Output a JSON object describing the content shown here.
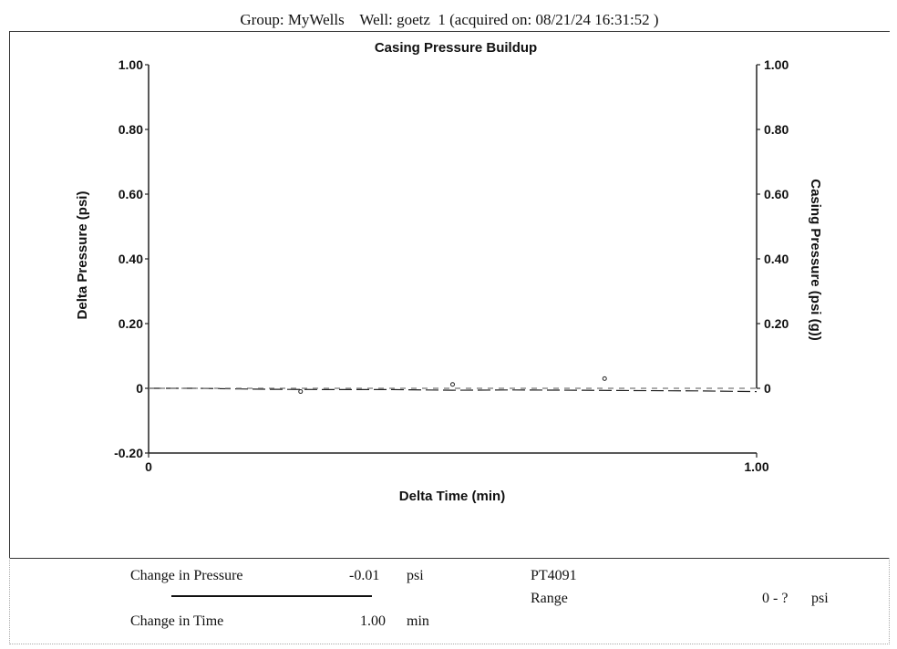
{
  "header": {
    "text": "Group: MyWells    Well: goetz  1 (acquired on: 08/21/24 16:31:52 )"
  },
  "chart_data": {
    "type": "scatter",
    "title": "Casing Pressure Buildup",
    "xlabel": "Delta Time (min)",
    "ylabel_left": "Delta Pressure (psi)",
    "ylabel_right": "Casing Pressure (psi (g))",
    "xlim": [
      0,
      1.0
    ],
    "ylim_left": [
      -0.2,
      1.0
    ],
    "ylim_right": [
      0,
      1.0
    ],
    "x_ticks": [
      "0",
      "1.00"
    ],
    "y_left_ticks": [
      "1.00",
      "0.80",
      "0.60",
      "0.40",
      "0.20",
      "0",
      "-0.20"
    ],
    "y_right_ticks": [
      "1.00",
      "0.80",
      "0.60",
      "0.40",
      "0.20",
      "0"
    ],
    "grid": false,
    "series": [
      {
        "style": "points",
        "x": [
          0.25,
          0.5,
          0.75
        ],
        "y": [
          -0.01,
          0.012,
          0.03
        ]
      },
      {
        "style": "dashed",
        "x": [
          0.0,
          0.08,
          0.15,
          0.2,
          0.3,
          0.4,
          0.5,
          0.6,
          0.7,
          0.8,
          0.9,
          1.0
        ],
        "y": [
          0.0,
          0.0,
          -0.002,
          -0.003,
          -0.004,
          -0.004,
          -0.006,
          -0.005,
          -0.006,
          -0.007,
          -0.008,
          -0.01
        ]
      },
      {
        "style": "dashed-light",
        "x": [
          0.0,
          0.5,
          1.0
        ],
        "y": [
          0.0,
          0.0,
          0.0
        ]
      }
    ]
  },
  "footer": {
    "change_pressure_label": "Change in Pressure",
    "change_pressure_value": "-0.01",
    "change_pressure_unit": "psi",
    "change_time_label": "Change in Time",
    "change_time_value": "1.00",
    "change_time_unit": "min",
    "sensor_id": "PT4091",
    "range_label": "Range",
    "range_value": "0 - ?",
    "range_unit": "psi"
  }
}
